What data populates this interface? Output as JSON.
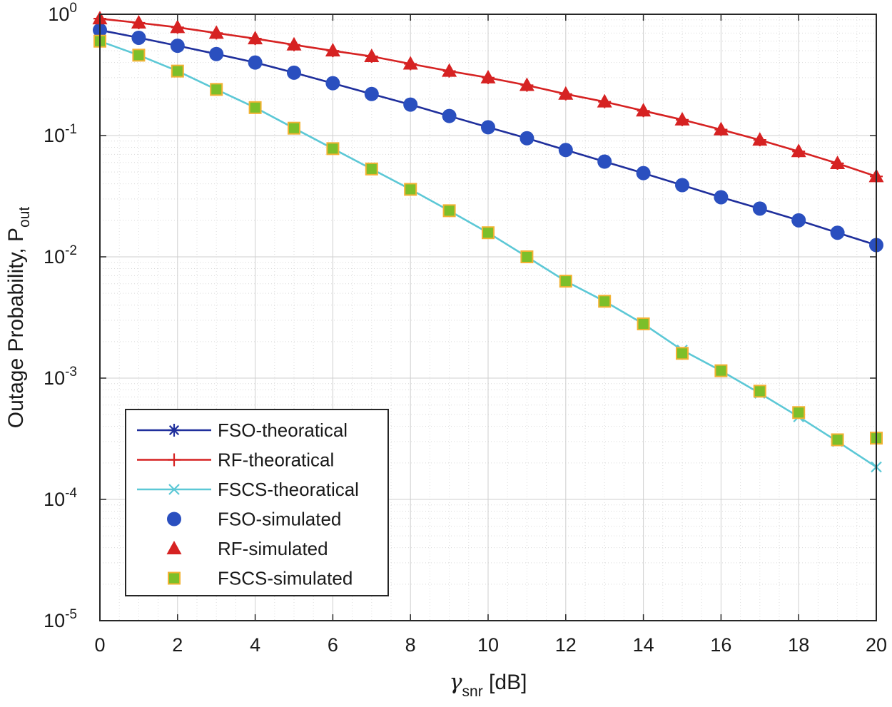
{
  "chart_data": {
    "type": "line",
    "title": "",
    "xlabel": "γ",
    "xlabel_sub": "snr",
    "xlabel_unit": "[dB]",
    "ylabel": "Outage Probability, P",
    "ylabel_sub": "out",
    "xlim": [
      0,
      20
    ],
    "ylim": [
      1e-05,
      1
    ],
    "yscale": "log",
    "grid": true,
    "x_ticks": [
      "0",
      "2",
      "4",
      "6",
      "8",
      "10",
      "12",
      "14",
      "16",
      "18",
      "20"
    ],
    "y_ticks": [
      {
        "base": "10",
        "exp": "0"
      },
      {
        "base": "10",
        "exp": "-1"
      },
      {
        "base": "10",
        "exp": "-2"
      },
      {
        "base": "10",
        "exp": "-3"
      },
      {
        "base": "10",
        "exp": "-4"
      },
      {
        "base": "10",
        "exp": "-5"
      }
    ],
    "legend_position": "bottom-left",
    "colors": {
      "fso": "#1f2f9c",
      "fso_marker": "#2a4fbf",
      "rf": "#d62222",
      "fscs": "#5cc8d6",
      "fscs_marker": "#7cbf2a",
      "fscs_marker_edge": "#f2b233"
    },
    "x": [
      0,
      1,
      2,
      3,
      4,
      5,
      6,
      7,
      8,
      9,
      10,
      11,
      12,
      13,
      14,
      15,
      16,
      17,
      18,
      19,
      20
    ],
    "series": [
      {
        "name": "FSO-theoratical",
        "style": "line",
        "marker": "asterisk",
        "color": "#1f2f9c",
        "values": [
          0.74,
          0.64,
          0.55,
          0.47,
          0.4,
          0.33,
          0.27,
          0.22,
          0.18,
          0.145,
          0.117,
          0.095,
          0.076,
          0.061,
          0.049,
          0.039,
          0.031,
          0.025,
          0.02,
          0.0158,
          0.0125
        ]
      },
      {
        "name": "RF-theoratical",
        "style": "line",
        "marker": "plus",
        "color": "#d62222",
        "values": [
          0.92,
          0.85,
          0.78,
          0.7,
          0.63,
          0.56,
          0.5,
          0.45,
          0.39,
          0.34,
          0.3,
          0.26,
          0.22,
          0.19,
          0.16,
          0.135,
          0.112,
          0.092,
          0.074,
          0.059,
          0.046
        ]
      },
      {
        "name": "FSCS-theoratical",
        "style": "line",
        "marker": "x",
        "color": "#5cc8d6",
        "values": [
          0.6,
          0.46,
          0.34,
          0.24,
          0.17,
          0.115,
          0.078,
          0.053,
          0.036,
          0.024,
          0.0158,
          0.01,
          0.0063,
          0.0043,
          0.0028,
          0.0017,
          0.00115,
          0.00075,
          0.00048,
          0.0003,
          0.000185
        ]
      },
      {
        "name": "FSO-simulated",
        "style": "marker",
        "marker": "circle",
        "color": "#2a4fbf",
        "values": [
          0.74,
          0.64,
          0.55,
          0.47,
          0.4,
          0.33,
          0.27,
          0.22,
          0.18,
          0.145,
          0.117,
          0.095,
          0.076,
          0.061,
          0.049,
          0.039,
          0.031,
          0.025,
          0.02,
          0.0158,
          0.0125
        ]
      },
      {
        "name": "RF-simulated",
        "style": "marker",
        "marker": "triangle",
        "color": "#d62222",
        "values": [
          0.92,
          0.85,
          0.78,
          0.7,
          0.63,
          0.56,
          0.5,
          0.45,
          0.39,
          0.34,
          0.3,
          0.26,
          0.22,
          0.19,
          0.16,
          0.135,
          0.112,
          0.092,
          0.074,
          0.059,
          0.046
        ]
      },
      {
        "name": "FSCS-simulated",
        "style": "marker",
        "marker": "square",
        "color": "#7cbf2a",
        "values": [
          0.6,
          0.46,
          0.34,
          0.24,
          0.17,
          0.115,
          0.078,
          0.053,
          0.036,
          0.024,
          0.0158,
          0.01,
          0.0063,
          0.0043,
          0.0028,
          0.0016,
          0.00115,
          0.00078,
          0.00052,
          0.00031,
          0.00032
        ]
      }
    ]
  }
}
